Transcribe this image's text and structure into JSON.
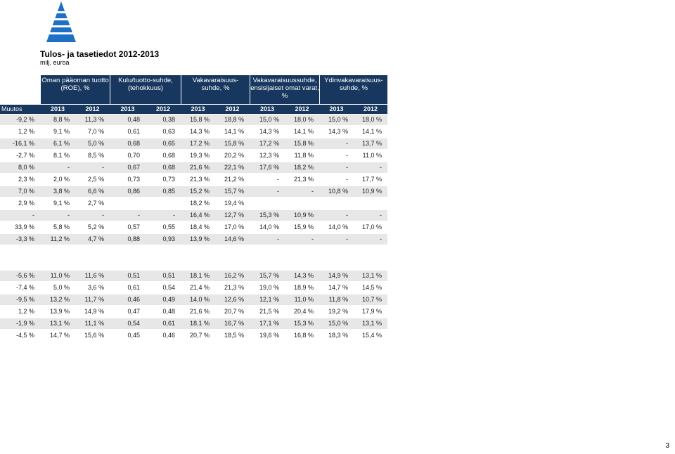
{
  "report": {
    "title": "Tulos- ja tasetiedot 2012-2013",
    "unit": "milj. euroa",
    "page_number": "3"
  },
  "colors": {
    "header_bg": "#17375e",
    "row_shade": "#e7e7e7",
    "logo_blue": "#1f6fc5"
  },
  "header": {
    "groups": [
      {
        "lines": [
          "Oman pääoman tuotto",
          "(ROE), %"
        ]
      },
      {
        "lines": [
          "Kulu/tuotto-suhde,",
          "(tehokkuus)"
        ]
      },
      {
        "lines": [
          "Vakavaraisuus-",
          "suhde, %"
        ]
      },
      {
        "lines": [
          "Vakavaraisuussuhde,",
          "ensisijaiset omat varat,",
          "%"
        ]
      },
      {
        "lines": [
          "Ydinvakavaraisuus-",
          "suhde, %"
        ]
      }
    ],
    "muutos_label": "Muutos",
    "years": [
      "2013",
      "2012",
      "2013",
      "2012",
      "2013",
      "2012",
      "2013",
      "2012",
      "2013",
      "2012"
    ]
  },
  "rows": [
    [
      "-9,2 %",
      "8,8 %",
      "11,3 %",
      "0,48",
      "0,38",
      "15,8 %",
      "18,8 %",
      "15,0 %",
      "18,0 %",
      "15,0 %",
      "18,0 %"
    ],
    [
      "1,2 %",
      "9,1 %",
      "7,0 %",
      "0,61",
      "0,63",
      "14,3 %",
      "14,1 %",
      "14,3 %",
      "14,1 %",
      "14,3 %",
      "14,1 %"
    ],
    [
      "-16,1 %",
      "6,1 %",
      "5,0 %",
      "0,68",
      "0,65",
      "17,2 %",
      "15,8 %",
      "17,2 %",
      "15,8 %",
      "-",
      "13,7 %"
    ],
    [
      "-2,7 %",
      "8,1 %",
      "8,5 %",
      "0,70",
      "0,68",
      "19,3 %",
      "20,2 %",
      "12,3 %",
      "11,8 %",
      "-",
      "11,0 %"
    ],
    [
      "8,0 %",
      "-",
      "-",
      "0,67",
      "0,68",
      "21,6 %",
      "22,1 %",
      "17,6 %",
      "18,2 %",
      "-",
      "-"
    ],
    [
      "2,3 %",
      "2,0 %",
      "2,5 %",
      "0,73",
      "0,73",
      "21,3 %",
      "21,2 %",
      "-",
      "21,3 %",
      "-",
      "17,7 %"
    ],
    [
      "7,0 %",
      "3,8 %",
      "6,6 %",
      "0,86",
      "0,85",
      "15,2 %",
      "15,7 %",
      "-",
      "-",
      "10,8 %",
      "10,9 %"
    ],
    [
      "2,9 %",
      "9,1 %",
      "2,7 %",
      "",
      "",
      "18,2 %",
      "19,4 %",
      "",
      "",
      "",
      ""
    ],
    [
      "-",
      "-",
      "-",
      "-",
      "-",
      "16,4 %",
      "12,7 %",
      "15,3 %",
      "10,9 %",
      "-",
      "-"
    ],
    [
      "33,9 %",
      "5,8 %",
      "5,2 %",
      "0,57",
      "0,55",
      "18,4 %",
      "17,0 %",
      "14,0 %",
      "15,9 %",
      "14,0 %",
      "17,0 %"
    ],
    [
      "-3,3 %",
      "11,2 %",
      "4,7 %",
      "0,88",
      "0,93",
      "13,9 %",
      "14,6 %",
      "-",
      "-",
      "-",
      "-"
    ],
    [
      "",
      "",
      "",
      "",
      "",
      "",
      "",
      "",
      "",
      "",
      ""
    ],
    [
      "-5,6 %",
      "11,0 %",
      "11,6 %",
      "0,51",
      "0,51",
      "18,1 %",
      "16,2 %",
      "15,7 %",
      "14,3 %",
      "14,9 %",
      "13,1 %"
    ],
    [
      "-7,4 %",
      "5,0 %",
      "3,6 %",
      "0,61",
      "0,54",
      "21,4 %",
      "21,3 %",
      "19,0 %",
      "18,9 %",
      "14,7 %",
      "14,5 %"
    ],
    [
      "-9,5 %",
      "13,2 %",
      "11,7 %",
      "0,46",
      "0,49",
      "14,0 %",
      "12,6 %",
      "12,1 %",
      "11,0 %",
      "11,8 %",
      "10,7 %"
    ],
    [
      "1,2 %",
      "13,9 %",
      "14,9 %",
      "0,47",
      "0,48",
      "21,6 %",
      "20,7 %",
      "21,5 %",
      "20,4 %",
      "19,2 %",
      "17,9 %"
    ],
    [
      "-1,9 %",
      "13,1 %",
      "11,1 %",
      "0,54",
      "0,61",
      "18,1 %",
      "16,7 %",
      "17,1 %",
      "15,3 %",
      "15,0 %",
      "13,1 %"
    ],
    [
      "-4,5 %",
      "14,7 %",
      "15,6 %",
      "0,45",
      "0,46",
      "20,7 %",
      "18,5 %",
      "19,6 %",
      "16,8 %",
      "18,3 %",
      "15,4 %"
    ]
  ]
}
